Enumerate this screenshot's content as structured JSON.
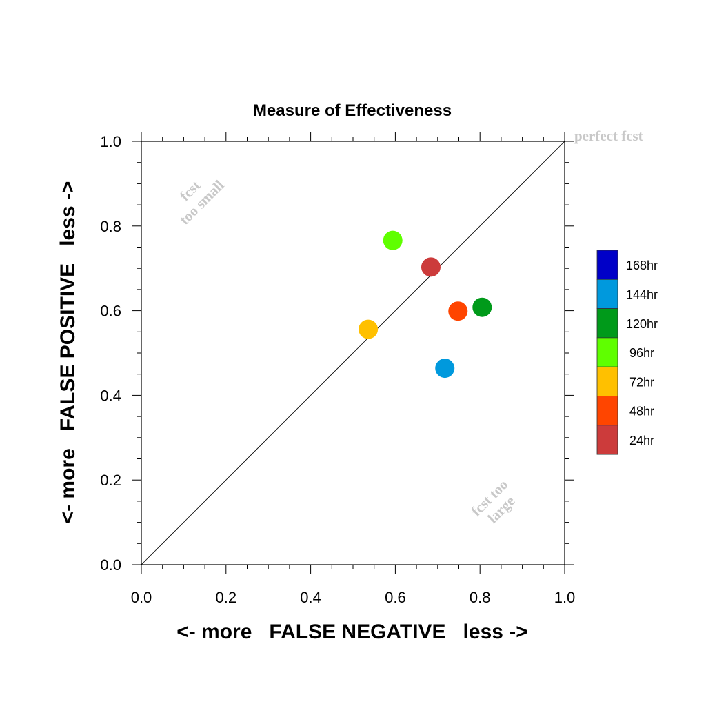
{
  "chart_data": {
    "type": "scatter",
    "title": "Measure of Effectiveness",
    "xlabel": "<- more   FALSE NEGATIVE   less ->",
    "ylabel": "<- more   FALSE POSITIVE   less ->",
    "xlim": [
      0.0,
      1.0
    ],
    "ylim": [
      0.0,
      1.0
    ],
    "xticks": [
      "0.0",
      "0.2",
      "0.4",
      "0.6",
      "0.8",
      "1.0"
    ],
    "yticks": [
      "0.0",
      "0.2",
      "0.4",
      "0.6",
      "0.8",
      "1.0"
    ],
    "grid": false,
    "diagonal_line": true,
    "legend_position": "right",
    "points": [
      {
        "name": "24hr",
        "x": 0.684,
        "y": 0.703,
        "color": "#cc3b3b"
      },
      {
        "name": "48hr",
        "x": 0.748,
        "y": 0.599,
        "color": "#ff4500"
      },
      {
        "name": "72hr",
        "x": 0.536,
        "y": 0.556,
        "color": "#ffc000"
      },
      {
        "name": "96hr",
        "x": 0.594,
        "y": 0.766,
        "color": "#5fff00"
      },
      {
        "name": "120hr",
        "x": 0.805,
        "y": 0.608,
        "color": "#009a1a"
      },
      {
        "name": "144hr",
        "x": 0.717,
        "y": 0.464,
        "color": "#0099dd"
      }
    ],
    "legend": [
      {
        "label": "168hr",
        "color": "#0000c8"
      },
      {
        "label": "144hr",
        "color": "#0099dd"
      },
      {
        "label": "120hr",
        "color": "#009a1a"
      },
      {
        "label": "96hr",
        "color": "#5fff00"
      },
      {
        "label": "72hr",
        "color": "#ffc000"
      },
      {
        "label": "48hr",
        "color": "#ff4500"
      },
      {
        "label": "24hr",
        "color": "#cc3b3b"
      }
    ],
    "annotations": {
      "perfect": "perfect fcst",
      "too_small": [
        "fcst",
        "too small"
      ],
      "too_large": [
        "fcst too",
        "large"
      ]
    }
  }
}
